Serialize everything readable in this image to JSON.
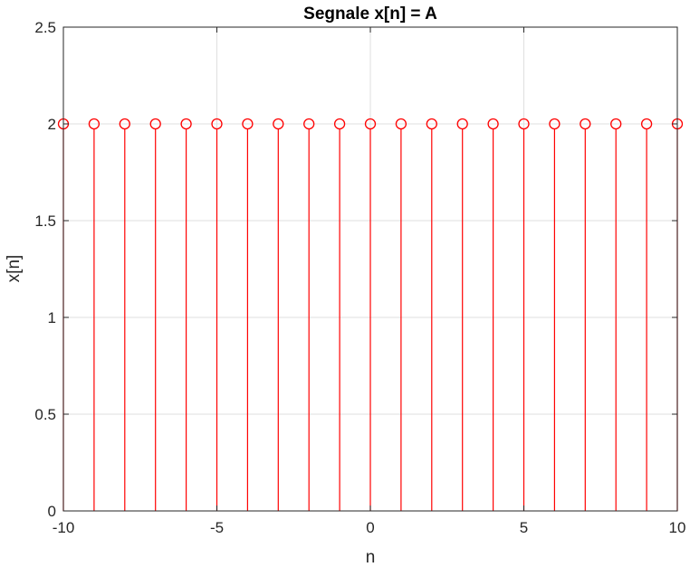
{
  "chart_data": {
    "type": "stem",
    "title": "Segnale x[n] = A",
    "xlabel": "n",
    "ylabel": "x[n]",
    "xlim": [
      -10,
      10
    ],
    "ylim": [
      0,
      2.5
    ],
    "grid": true,
    "x_ticks": [
      "-10",
      "-5",
      "0",
      "5",
      "10"
    ],
    "y_ticks": [
      "0",
      "0.5",
      "1",
      "1.5",
      "2",
      "2.5"
    ],
    "series": [
      {
        "color": "#ff0000",
        "marker": "circle",
        "x": [
          -10,
          -9,
          -8,
          -7,
          -6,
          -5,
          -4,
          -3,
          -2,
          -1,
          0,
          1,
          2,
          3,
          4,
          5,
          6,
          7,
          8,
          9,
          10
        ],
        "y": [
          2,
          2,
          2,
          2,
          2,
          2,
          2,
          2,
          2,
          2,
          2,
          2,
          2,
          2,
          2,
          2,
          2,
          2,
          2,
          2,
          2
        ]
      }
    ],
    "colors": {
      "axis": "#262626",
      "grid": "#dfdfdf",
      "stem": "#ff0000"
    }
  }
}
